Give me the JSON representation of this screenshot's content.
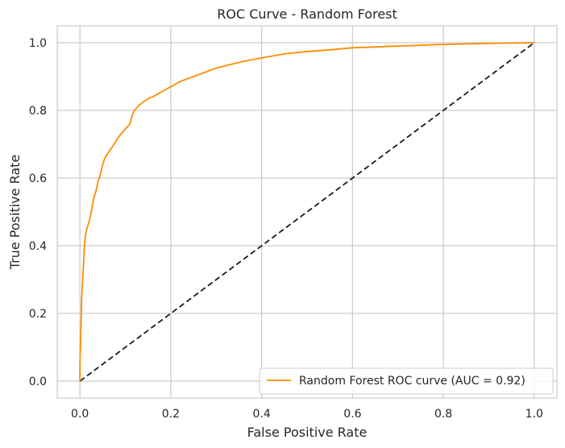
{
  "chart_data": {
    "type": "line",
    "title": "ROC Curve - Random Forest",
    "xlabel": "False Positive Rate",
    "ylabel": "True Positive Rate",
    "xlim": [
      -0.05,
      1.05
    ],
    "ylim": [
      -0.05,
      1.05
    ],
    "xticks": [
      0.0,
      0.2,
      0.4,
      0.6,
      0.8,
      1.0
    ],
    "yticks": [
      0.0,
      0.2,
      0.4,
      0.6,
      0.8,
      1.0
    ],
    "tick_labels_x": [
      "0.0",
      "0.2",
      "0.4",
      "0.6",
      "0.8",
      "1.0"
    ],
    "tick_labels_y": [
      "0.0",
      "0.2",
      "0.4",
      "0.6",
      "0.8",
      "1.0"
    ],
    "grid": true,
    "legend_position": "lower-right",
    "series": [
      {
        "name": "Random Forest ROC curve (AUC = 0.92)",
        "color": "#ff8c00",
        "style": "solid",
        "points": [
          [
            0.0,
            0.0
          ],
          [
            0.0,
            0.05
          ],
          [
            0.002,
            0.15
          ],
          [
            0.004,
            0.25
          ],
          [
            0.006,
            0.3
          ],
          [
            0.008,
            0.35
          ],
          [
            0.01,
            0.4
          ],
          [
            0.012,
            0.43
          ],
          [
            0.015,
            0.45
          ],
          [
            0.02,
            0.47
          ],
          [
            0.025,
            0.5
          ],
          [
            0.03,
            0.54
          ],
          [
            0.035,
            0.56
          ],
          [
            0.04,
            0.59
          ],
          [
            0.045,
            0.61
          ],
          [
            0.05,
            0.64
          ],
          [
            0.055,
            0.66
          ],
          [
            0.06,
            0.67
          ],
          [
            0.07,
            0.69
          ],
          [
            0.08,
            0.71
          ],
          [
            0.09,
            0.73
          ],
          [
            0.1,
            0.745
          ],
          [
            0.11,
            0.76
          ],
          [
            0.115,
            0.785
          ],
          [
            0.12,
            0.8
          ],
          [
            0.13,
            0.815
          ],
          [
            0.14,
            0.825
          ],
          [
            0.15,
            0.835
          ],
          [
            0.16,
            0.84
          ],
          [
            0.18,
            0.855
          ],
          [
            0.2,
            0.87
          ],
          [
            0.22,
            0.885
          ],
          [
            0.25,
            0.9
          ],
          [
            0.28,
            0.915
          ],
          [
            0.3,
            0.925
          ],
          [
            0.33,
            0.935
          ],
          [
            0.36,
            0.945
          ],
          [
            0.4,
            0.955
          ],
          [
            0.45,
            0.967
          ],
          [
            0.5,
            0.974
          ],
          [
            0.55,
            0.979
          ],
          [
            0.6,
            0.985
          ],
          [
            0.7,
            0.99
          ],
          [
            0.8,
            0.995
          ],
          [
            0.9,
            0.998
          ],
          [
            1.0,
            1.0
          ]
        ]
      },
      {
        "name": "",
        "color": "#1a1a1a",
        "style": "dashed",
        "points": [
          [
            0.0,
            0.0
          ],
          [
            1.0,
            1.0
          ]
        ]
      }
    ]
  }
}
